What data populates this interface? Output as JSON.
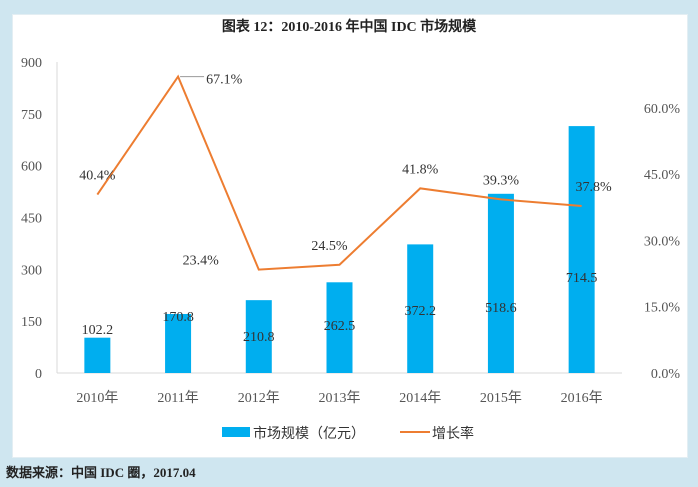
{
  "title": "图表 12：2010-2016 年中国 IDC 市场规模",
  "source": "数据来源：中国 IDC 圈，2017.04",
  "chart_data": {
    "type": "bar+line",
    "title": "图表 12：2010-2016 年中国 IDC 市场规模",
    "categories": [
      "2010年",
      "2011年",
      "2012年",
      "2013年",
      "2014年",
      "2015年",
      "2016年"
    ],
    "series": [
      {
        "name": "市场规模（亿元）",
        "type": "bar",
        "axis": "left",
        "color": "#00aeef",
        "values": [
          102.2,
          170.8,
          210.8,
          262.5,
          372.2,
          518.6,
          714.5
        ],
        "labels": [
          "102.2",
          "170.8",
          "210.8",
          "262.5",
          "372.2",
          "518.6",
          "714.5"
        ]
      },
      {
        "name": "增长率",
        "type": "line",
        "axis": "right",
        "color": "#ed7d31",
        "values": [
          40.4,
          67.1,
          23.4,
          24.5,
          41.8,
          39.3,
          37.8
        ],
        "labels": [
          "40.4%",
          "67.1%",
          "23.4%",
          "24.5%",
          "41.8%",
          "39.3%",
          "37.8%"
        ]
      }
    ],
    "y_left": {
      "ylim": [
        0,
        900
      ],
      "ticks": [
        "0",
        "150",
        "300",
        "450",
        "600",
        "750",
        "900"
      ]
    },
    "y_right": {
      "ylim": [
        0,
        70.4
      ],
      "ticks": [
        "0.0%",
        "15.0%",
        "30.0%",
        "45.0%",
        "60.0%"
      ]
    },
    "legend": "bottom",
    "grid": false
  }
}
